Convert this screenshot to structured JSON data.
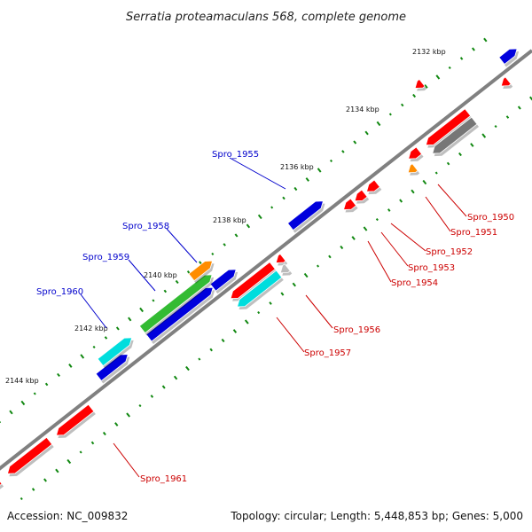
{
  "title": "Serratia proteamaculans 568, complete genome",
  "footer": {
    "accession": "Accession: NC_009832",
    "summary": "Topology: circular; Length: 5,448,853 bp; Genes: 5,000"
  },
  "ticks": [
    "2132 kbp",
    "2134 kbp",
    "2136 kbp",
    "2138 kbp",
    "2140 kbp",
    "2142 kbp",
    "2144 kbp"
  ],
  "colors": {
    "backbone": "#808080",
    "red": "#ff0000",
    "blue": "#0000dd",
    "green": "#33bb33",
    "cyan": "#00dddd",
    "orange": "#ff8c00",
    "grey": "#777777",
    "lightgrey": "#bbbbbb",
    "gc_dots": "#118811",
    "label_blue": "#0000cc",
    "label_red": "#cc0000"
  },
  "gene_labels": {
    "blue": [
      "Spro_1955",
      "Spro_1958",
      "Spro_1959",
      "Spro_1960"
    ],
    "red": [
      "Spro_1950",
      "Spro_1951",
      "Spro_1952",
      "Spro_1953",
      "Spro_1954",
      "Spro_1956",
      "Spro_1957",
      "Spro_1961"
    ]
  }
}
